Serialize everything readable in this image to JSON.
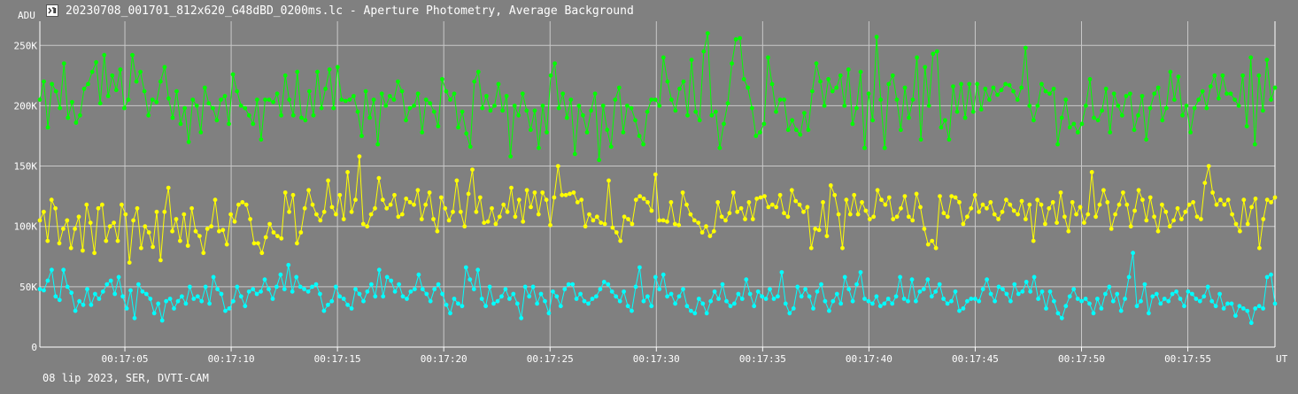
{
  "window": {
    "title": "20230708_001701_812x620_G48dBD_0200ms.lc - Aperture Photometry, Average Background",
    "icon": "app-icon"
  },
  "footer": {
    "info": "08 lip 2023, SER, DVTI-CAM"
  },
  "chart_data": {
    "type": "line",
    "title": "20230708_001701_812x620_G48dBD_0200ms.lc - Aperture Photometry, Average Background",
    "xlabel": "UT",
    "ylabel": "ADU",
    "x_unit_label": "UT",
    "y_unit_label": "ADU",
    "x_start": "00:17:01.0",
    "x_end": "00:17:59.1",
    "xlim": [
      61,
      119.1
    ],
    "ylim": [
      0,
      270000
    ],
    "x_ticks": [
      65,
      70,
      75,
      80,
      85,
      90,
      95,
      100,
      105,
      110,
      115
    ],
    "x_tick_labels": [
      "00:17:05",
      "00:17:10",
      "00:17:15",
      "00:17:20",
      "00:17:25",
      "00:17:30",
      "00:17:35",
      "00:17:40",
      "00:17:45",
      "00:17:50",
      "00:17:55"
    ],
    "y_ticks": [
      0,
      50000,
      100000,
      150000,
      200000,
      250000
    ],
    "y_tick_labels": [
      "0",
      "50K",
      "100K",
      "150K",
      "200K",
      "250K"
    ],
    "grid": true,
    "legend": "none",
    "colors": {
      "background": "#808080",
      "grid": "#c8c8c8",
      "axis": "#ffffff"
    },
    "series": [
      {
        "color": "#00ff00",
        "values": [
          205000,
          220000,
          182000,
          218000,
          212000,
          198000,
          235000,
          190000,
          203000,
          186000,
          192000,
          214000,
          218000,
          228000,
          236000,
          202000,
          242000,
          208000,
          225000,
          213000,
          230000,
          198000,
          205000,
          242000,
          220000,
          228000,
          212000,
          192000,
          205000,
          203000,
          220000,
          232000,
          206000,
          190000,
          212000,
          185000,
          198000,
          170000,
          205000,
          200000,
          178000,
          215000,
          202000,
          198000,
          188000,
          205000,
          208000,
          185000,
          226000,
          212000,
          200000,
          198000,
          192000,
          185000,
          205000,
          172000,
          205000,
          205000,
          203000,
          210000,
          192000,
          225000,
          205000,
          192000,
          228000,
          190000,
          188000,
          212000,
          192000,
          228000,
          198000,
          214000,
          230000,
          198000,
          232000,
          205000,
          204000,
          205000,
          208000,
          195000,
          175000,
          212000,
          190000,
          205000,
          168000,
          210000,
          200000,
          208000,
          205000,
          220000,
          212000,
          188000,
          198000,
          200000,
          210000,
          178000,
          205000,
          202000,
          195000,
          183000,
          222000,
          212000,
          205000,
          210000,
          182000,
          195000,
          177000,
          166000,
          220000,
          228000,
          198000,
          208000,
          196000,
          200000,
          218000,
          196000,
          208000,
          158000,
          200000,
          192000,
          210000,
          196000,
          180000,
          196000,
          165000,
          200000,
          178000,
          225000,
          235000,
          198000,
          210000,
          190000,
          205000,
          160000,
          200000,
          192000,
          178000,
          196000,
          210000,
          155000,
          200000,
          180000,
          166000,
          205000,
          215000,
          178000,
          200000,
          198000,
          188000,
          175000,
          168000,
          195000,
          205000,
          205000,
          200000,
          240000,
          220000,
          205000,
          196000,
          214000,
          220000,
          192000,
          238000,
          195000,
          188000,
          245000,
          260000,
          192000,
          195000,
          165000,
          185000,
          202000,
          235000,
          255000,
          256000,
          222000,
          215000,
          198000,
          175000,
          178000,
          185000,
          240000,
          218000,
          195000,
          205000,
          205000,
          180000,
          188000,
          180000,
          176000,
          194000,
          180000,
          212000,
          235000,
          220000,
          200000,
          222000,
          212000,
          215000,
          225000,
          200000,
          230000,
          185000,
          198000,
          228000,
          165000,
          210000,
          188000,
          257000,
          205000,
          165000,
          218000,
          225000,
          205000,
          180000,
          215000,
          190000,
          205000,
          240000,
          172000,
          232000,
          200000,
          243000,
          245000,
          182000,
          188000,
          172000,
          216000,
          195000,
          218000,
          190000,
          218000,
          195000,
          218000,
          197000,
          214000,
          205000,
          215000,
          209000,
          213000,
          218000,
          217000,
          212000,
          205000,
          215000,
          248000,
          200000,
          188000,
          200000,
          218000,
          212000,
          210000,
          214000,
          168000,
          190000,
          205000,
          182000,
          185000,
          178000,
          185000,
          200000,
          222000,
          190000,
          188000,
          196000,
          214000,
          178000,
          210000,
          200000,
          192000,
          208000,
          210000,
          180000,
          192000,
          208000,
          172000,
          198000,
          210000,
          215000,
          188000,
          198000,
          228000,
          205000,
          224000,
          192000,
          200000,
          178000,
          198000,
          205000,
          212000,
          198000,
          216000,
          225000,
          206000,
          225000,
          210000,
          210000,
          205000,
          200000,
          225000,
          183000,
          240000,
          168000,
          225000,
          196000,
          238000,
          205000,
          215000
        ],
        "_unused": null
      },
      {
        "color": "#ffff00",
        "values": [
          105000,
          112000,
          88000,
          122000,
          115000,
          86000,
          98000,
          105000,
          82000,
          98000,
          108000,
          80000,
          118000,
          103000,
          78000,
          115000,
          118000,
          88000,
          100000,
          103000,
          88000,
          118000,
          110000,
          70000,
          105000,
          115000,
          82000,
          100000,
          95000,
          83000,
          112000,
          72000,
          112000,
          132000,
          96000,
          106000,
          88000,
          110000,
          84000,
          115000,
          96000,
          92000,
          78000,
          98000,
          100000,
          122000,
          96000,
          97000,
          85000,
          110000,
          104000,
          118000,
          120000,
          118000,
          106000,
          86000,
          86000,
          78000,
          91000,
          102000,
          95000,
          92000,
          90000,
          128000,
          112000,
          126000,
          86000,
          95000,
          115000,
          130000,
          118000,
          110000,
          105000,
          112000,
          138000,
          116000,
          110000,
          126000,
          106000,
          145000,
          112000,
          122000,
          158000,
          102000,
          100000,
          110000,
          115000,
          140000,
          122000,
          115000,
          118000,
          126000,
          108000,
          110000,
          123000,
          120000,
          118000,
          130000,
          106000,
          118000,
          128000,
          106000,
          96000,
          124000,
          115000,
          105000,
          112000,
          138000,
          112000,
          100000,
          127000,
          147000,
          112000,
          124000,
          103000,
          104000,
          115000,
          102000,
          108000,
          118000,
          112000,
          132000,
          108000,
          122000,
          104000,
          130000,
          116000,
          128000,
          110000,
          128000,
          122000,
          101000,
          124000,
          150000,
          126000,
          126000,
          127000,
          128000,
          120000,
          122000,
          100000,
          110000,
          105000,
          108000,
          103000,
          102000,
          138000,
          99000,
          95000,
          88000,
          108000,
          106000,
          102000,
          122000,
          125000,
          123000,
          120000,
          113000,
          143000,
          105000,
          105000,
          104000,
          120000,
          102000,
          101000,
          128000,
          118000,
          110000,
          105000,
          103000,
          95000,
          100000,
          92000,
          96000,
          120000,
          108000,
          105000,
          111000,
          128000,
          112000,
          115000,
          106000,
          120000,
          106000,
          123000,
          124000,
          125000,
          116000,
          118000,
          116000,
          126000,
          111000,
          108000,
          130000,
          121000,
          118000,
          112000,
          116000,
          82000,
          98000,
          97000,
          120000,
          92000,
          134000,
          126000,
          110000,
          82000,
          122000,
          110000,
          126000,
          110000,
          120000,
          113000,
          106000,
          108000,
          130000,
          122000,
          118000,
          124000,
          106000,
          108000,
          115000,
          125000,
          108000,
          105000,
          127000,
          116000,
          98000,
          85000,
          88000,
          82000,
          125000,
          111000,
          108000,
          125000,
          124000,
          120000,
          102000,
          108000,
          115000,
          126000,
          112000,
          118000,
          115000,
          120000,
          110000,
          106000,
          112000,
          122000,
          118000,
          113000,
          110000,
          121000,
          106000,
          118000,
          88000,
          122000,
          118000,
          102000,
          115000,
          120000,
          103000,
          128000,
          108000,
          96000,
          120000,
          110000,
          116000,
          103000,
          110000,
          145000,
          108000,
          118000,
          130000,
          120000,
          98000,
          110000,
          118000,
          128000,
          118000,
          100000,
          113000,
          130000,
          122000,
          105000,
          124000,
          108000,
          96000,
          118000,
          112000,
          100000,
          105000,
          115000,
          106000,
          112000,
          118000,
          120000,
          108000,
          106000,
          136000,
          150000,
          128000,
          118000,
          122000,
          118000,
          122000,
          110000,
          102000,
          96000,
          122000,
          102000,
          116000,
          123000,
          82000,
          106000,
          122000,
          120000,
          124000
        ]
      },
      {
        "color": "#00ffff",
        "values": [
          48000,
          47000,
          55000,
          64000,
          42000,
          39000,
          64000,
          50000,
          45000,
          30000,
          38000,
          35000,
          48000,
          35000,
          44000,
          40000,
          46000,
          52000,
          55000,
          44000,
          58000,
          42000,
          32000,
          47000,
          24000,
          52000,
          46000,
          44000,
          40000,
          28000,
          36000,
          22000,
          38000,
          40000,
          32000,
          38000,
          42000,
          36000,
          50000,
          40000,
          42000,
          38000,
          50000,
          36000,
          58000,
          48000,
          44000,
          30000,
          32000,
          38000,
          50000,
          42000,
          34000,
          46000,
          48000,
          44000,
          46000,
          56000,
          48000,
          40000,
          50000,
          60000,
          48000,
          68000,
          46000,
          58000,
          50000,
          48000,
          46000,
          50000,
          52000,
          44000,
          30000,
          35000,
          38000,
          50000,
          42000,
          40000,
          35000,
          32000,
          48000,
          44000,
          38000,
          46000,
          52000,
          42000,
          64000,
          42000,
          58000,
          55000,
          46000,
          52000,
          42000,
          40000,
          46000,
          48000,
          60000,
          48000,
          44000,
          38000,
          48000,
          52000,
          44000,
          35000,
          28000,
          40000,
          36000,
          34000,
          66000,
          56000,
          48000,
          64000,
          40000,
          34000,
          50000,
          36000,
          38000,
          42000,
          48000,
          40000,
          44000,
          36000,
          24000,
          50000,
          42000,
          50000,
          36000,
          44000,
          38000,
          28000,
          46000,
          42000,
          34000,
          48000,
          52000,
          52000,
          40000,
          44000,
          38000,
          36000,
          40000,
          42000,
          48000,
          54000,
          52000,
          46000,
          42000,
          38000,
          46000,
          34000,
          30000,
          50000,
          66000,
          38000,
          42000,
          34000,
          58000,
          48000,
          60000,
          42000,
          44000,
          36000,
          42000,
          48000,
          34000,
          30000,
          28000,
          40000,
          36000,
          28000,
          38000,
          46000,
          40000,
          52000,
          38000,
          34000,
          36000,
          44000,
          40000,
          56000,
          44000,
          34000,
          46000,
          42000,
          40000,
          48000,
          40000,
          42000,
          62000,
          36000,
          28000,
          32000,
          50000,
          42000,
          48000,
          42000,
          32000,
          46000,
          52000,
          38000,
          30000,
          38000,
          44000,
          36000,
          58000,
          48000,
          38000,
          52000,
          62000,
          40000,
          38000,
          36000,
          42000,
          34000,
          36000,
          40000,
          36000,
          42000,
          58000,
          40000,
          38000,
          56000,
          38000,
          46000,
          48000,
          56000,
          42000,
          46000,
          52000,
          40000,
          36000,
          38000,
          46000,
          30000,
          32000,
          38000,
          40000,
          40000,
          38000,
          48000,
          56000,
          44000,
          38000,
          50000,
          48000,
          44000,
          38000,
          52000,
          44000,
          46000,
          54000,
          46000,
          58000,
          40000,
          46000,
          32000,
          46000,
          38000,
          28000,
          24000,
          34000,
          42000,
          48000,
          40000,
          38000,
          40000,
          36000,
          28000,
          40000,
          32000,
          44000,
          50000,
          38000,
          44000,
          30000,
          40000,
          58000,
          78000,
          34000,
          38000,
          52000,
          28000,
          42000,
          44000,
          36000,
          40000,
          38000,
          44000,
          46000,
          40000,
          34000,
          46000,
          44000,
          40000,
          38000,
          42000,
          50000,
          38000,
          34000,
          44000,
          32000,
          36000,
          36000,
          26000,
          34000,
          32000,
          30000,
          20000,
          32000,
          34000,
          32000,
          58000,
          60000,
          36000
        ]
      }
    ]
  }
}
